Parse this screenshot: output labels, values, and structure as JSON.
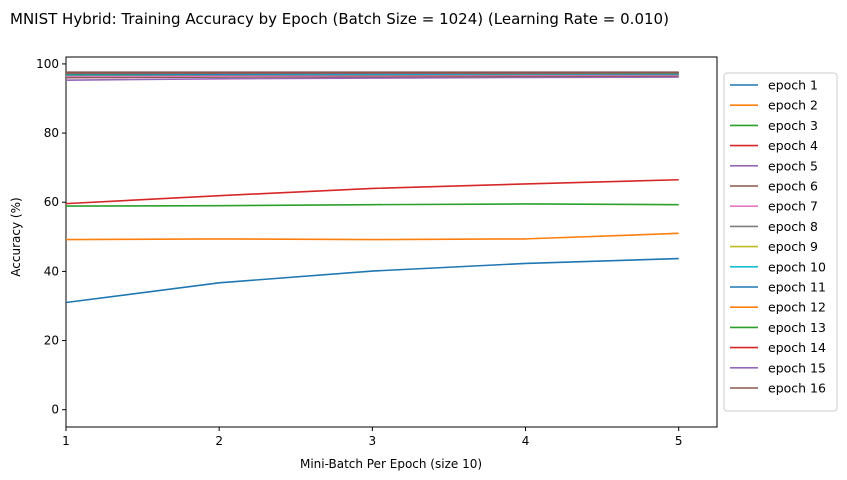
{
  "chart_data": {
    "type": "line",
    "title": "MNIST Hybrid: Training Accuracy by Epoch (Batch Size = 1024) (Learning Rate = 0.010)",
    "xlabel": "Mini-Batch Per Epoch (size 10)",
    "ylabel": "Accuracy (%)",
    "x": [
      1,
      2,
      3,
      4,
      5
    ],
    "xlim": [
      1,
      5.25
    ],
    "ylim": [
      -5,
      102
    ],
    "xticks": [
      "1",
      "2",
      "3",
      "4",
      "5"
    ],
    "yticks": [
      "0",
      "20",
      "40",
      "60",
      "80",
      "100"
    ],
    "grid": false,
    "legend_position": "outside right",
    "series": [
      {
        "name": "epoch 1",
        "color": "#1f77b4",
        "values": [
          31.0,
          36.7,
          40.1,
          42.3,
          43.7
        ]
      },
      {
        "name": "epoch 2",
        "color": "#ff7f0e",
        "values": [
          49.2,
          49.4,
          49.2,
          49.4,
          51.0
        ]
      },
      {
        "name": "epoch 3",
        "color": "#2ca02c",
        "values": [
          58.9,
          59.0,
          59.3,
          59.5,
          59.3
        ]
      },
      {
        "name": "epoch 4",
        "color": "#d62728",
        "values": [
          59.6,
          61.9,
          64.0,
          65.3,
          66.5
        ]
      },
      {
        "name": "epoch 5",
        "color": "#9467bd",
        "values": [
          95.3,
          95.7,
          95.9,
          96.1,
          96.2
        ]
      },
      {
        "name": "epoch 6",
        "color": "#8c564b",
        "values": [
          96.0,
          96.2,
          96.3,
          96.4,
          96.5
        ]
      },
      {
        "name": "epoch 7",
        "color": "#e377c2",
        "values": [
          96.4,
          96.5,
          96.6,
          96.7,
          96.7
        ]
      },
      {
        "name": "epoch 8",
        "color": "#7f7f7f",
        "values": [
          96.7,
          96.8,
          96.8,
          96.9,
          96.9
        ]
      },
      {
        "name": "epoch 9",
        "color": "#bcbd22",
        "values": [
          97.0,
          97.1,
          97.1,
          97.1,
          97.2
        ]
      },
      {
        "name": "epoch 10",
        "color": "#17becf",
        "values": [
          96.9,
          97.0,
          97.0,
          97.1,
          97.1
        ]
      },
      {
        "name": "epoch 11",
        "color": "#1f77b4",
        "values": [
          97.1,
          97.1,
          97.2,
          97.2,
          97.2
        ]
      },
      {
        "name": "epoch 12",
        "color": "#ff7f0e",
        "values": [
          97.3,
          97.3,
          97.3,
          97.3,
          97.4
        ]
      },
      {
        "name": "epoch 13",
        "color": "#2ca02c",
        "values": [
          97.2,
          97.3,
          97.3,
          97.3,
          97.3
        ]
      },
      {
        "name": "epoch 14",
        "color": "#d62728",
        "values": [
          97.4,
          97.4,
          97.4,
          97.4,
          97.5
        ]
      },
      {
        "name": "epoch 15",
        "color": "#9467bd",
        "values": [
          97.5,
          97.5,
          97.5,
          97.5,
          97.5
        ]
      },
      {
        "name": "epoch 16",
        "color": "#8c564b",
        "values": [
          97.6,
          97.6,
          97.6,
          97.6,
          97.6
        ]
      }
    ]
  }
}
